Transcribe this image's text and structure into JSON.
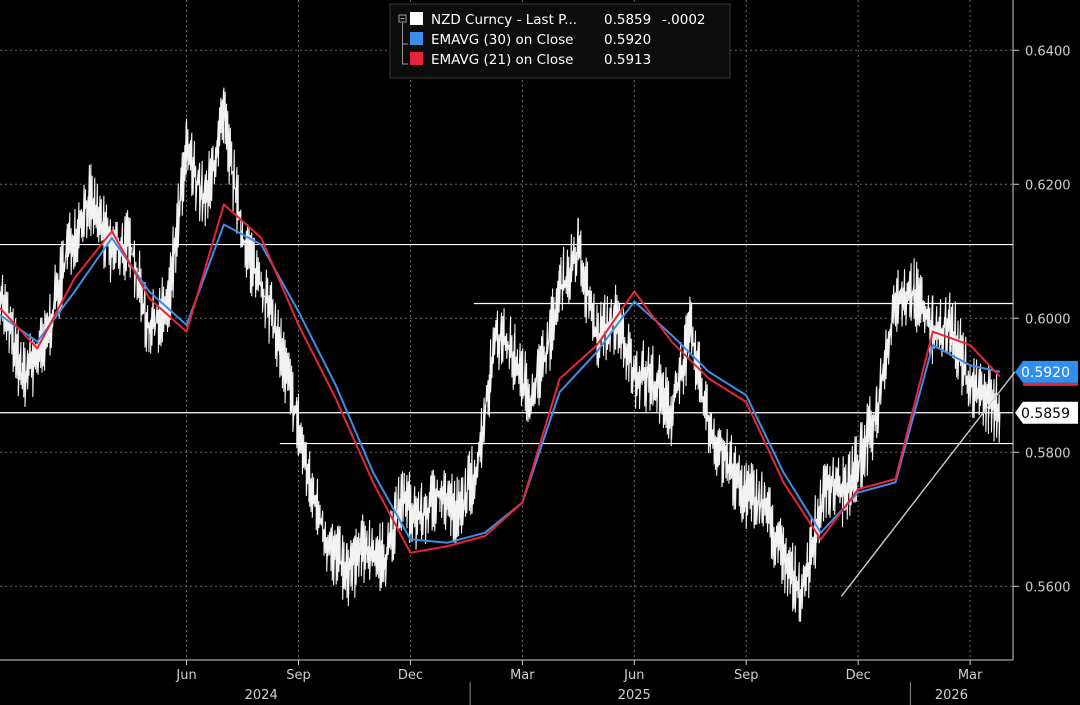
{
  "chart_data": {
    "type": "line",
    "background": "#000000",
    "y_axis": {
      "ticks": [
        0.64,
        0.62,
        0.6,
        0.58,
        0.56
      ],
      "tick_labels": [
        "0.6400",
        "0.6200",
        "0.6000",
        "0.5800",
        "0.5600"
      ],
      "range": [
        0.549,
        0.6475
      ]
    },
    "x_axis": {
      "month_labels": [
        "Jun",
        "Sep",
        "Dec",
        "Mar",
        "Jun",
        "Sep",
        "Dec",
        "Mar"
      ],
      "month_index": [
        5,
        8,
        11,
        14,
        17,
        20,
        23,
        26
      ],
      "year_labels": [
        "2024",
        "2025",
        "2026"
      ],
      "year_month_index": [
        7,
        17,
        25.5
      ],
      "range_months": [
        0,
        27.15
      ]
    },
    "legend": {
      "position": "top-center",
      "entries": [
        {
          "label": "NZD Curncy - Last P...",
          "value": "0.5859",
          "change": "-.0002",
          "color": "#ffffff"
        },
        {
          "label": "EMAVG (30)  on Close",
          "value": "0.5920",
          "color": "#3d8ee8"
        },
        {
          "label": "EMAVG (21)  on Close",
          "value": "0.5913",
          "color": "#e8243a"
        }
      ]
    },
    "price_tags": [
      {
        "text": "0.5920",
        "value": 0.592,
        "bg": "#2f8fef",
        "fg": "#ffffff",
        "underline": "#e8243a"
      },
      {
        "text": "0.5859",
        "value": 0.5859,
        "bg": "#ffffff",
        "fg": "#000000"
      }
    ],
    "series": [
      {
        "name": "NZD Curncy",
        "kind": "price",
        "color": "#ffffff",
        "x": [
          0.0,
          0.6,
          1.2,
          1.8,
          2.4,
          3.0,
          3.5,
          4.0,
          4.5,
          5.0,
          5.5,
          6.0,
          6.5,
          7.0,
          7.5,
          8.0,
          8.3,
          8.8,
          9.3,
          9.8,
          10.3,
          10.8,
          11.3,
          11.8,
          12.3,
          12.8,
          13.3,
          13.8,
          14.2,
          14.6,
          15.0,
          15.5,
          16.0,
          16.5,
          17.0,
          17.5,
          18.0,
          18.5,
          19.0,
          19.5,
          20.0,
          20.5,
          21.0,
          21.5,
          22.0,
          22.3,
          22.6,
          23.0,
          23.5,
          24.0,
          24.5,
          25.0,
          25.5,
          26.0,
          26.5,
          26.8
        ],
        "y": [
          0.604,
          0.591,
          0.596,
          0.61,
          0.618,
          0.61,
          0.611,
          0.598,
          0.602,
          0.625,
          0.617,
          0.63,
          0.612,
          0.605,
          0.596,
          0.584,
          0.575,
          0.566,
          0.562,
          0.566,
          0.564,
          0.573,
          0.57,
          0.574,
          0.571,
          0.578,
          0.598,
          0.594,
          0.588,
          0.594,
          0.604,
          0.61,
          0.597,
          0.6,
          0.592,
          0.591,
          0.586,
          0.598,
          0.584,
          0.578,
          0.574,
          0.572,
          0.564,
          0.559,
          0.572,
          0.576,
          0.574,
          0.578,
          0.586,
          0.603,
          0.604,
          0.598,
          0.599,
          0.59,
          0.588,
          0.5859
        ]
      },
      {
        "name": "EMAVG (30)",
        "kind": "ema",
        "color": "#3d8ee8",
        "x": [
          0.0,
          1.0,
          2.0,
          3.0,
          4.0,
          5.0,
          6.0,
          7.0,
          8.0,
          9.0,
          10.0,
          11.0,
          12.0,
          13.0,
          14.0,
          15.0,
          16.0,
          17.0,
          18.0,
          19.0,
          20.0,
          21.0,
          22.0,
          23.0,
          24.0,
          25.0,
          26.0,
          26.8
        ],
        "y": [
          0.6005,
          0.5965,
          0.604,
          0.612,
          0.604,
          0.599,
          0.614,
          0.611,
          0.601,
          0.59,
          0.577,
          0.567,
          0.5665,
          0.568,
          0.5725,
          0.589,
          0.595,
          0.6025,
          0.5975,
          0.592,
          0.5885,
          0.577,
          0.568,
          0.574,
          0.5755,
          0.596,
          0.593,
          0.592
        ]
      },
      {
        "name": "EMAVG (21)",
        "kind": "ema",
        "color": "#e8243a",
        "x": [
          0.0,
          1.0,
          2.0,
          3.0,
          4.0,
          5.0,
          6.0,
          7.0,
          8.0,
          9.0,
          10.0,
          11.0,
          12.0,
          13.0,
          14.0,
          15.0,
          16.0,
          17.0,
          18.0,
          19.0,
          20.0,
          21.0,
          22.0,
          23.0,
          24.0,
          25.0,
          26.0,
          26.8
        ],
        "y": [
          0.6015,
          0.5955,
          0.606,
          0.613,
          0.603,
          0.598,
          0.617,
          0.612,
          0.599,
          0.588,
          0.5755,
          0.565,
          0.566,
          0.5675,
          0.5725,
          0.591,
          0.596,
          0.604,
          0.5965,
          0.591,
          0.5875,
          0.5755,
          0.567,
          0.5745,
          0.576,
          0.598,
          0.596,
          0.5913
        ]
      }
    ],
    "annotations": [
      {
        "kind": "hline",
        "value": 0.611,
        "x_from": 0.0,
        "x_to": 27.15,
        "color": "#ffffff"
      },
      {
        "kind": "hline",
        "value": 0.6022,
        "x_from": 12.7,
        "x_to": 27.15,
        "color": "#ffffff"
      },
      {
        "kind": "hline",
        "value": 0.5859,
        "x_from": 0.0,
        "x_to": 27.15,
        "color": "#ffffff"
      },
      {
        "kind": "hline",
        "value": 0.5813,
        "x_from": 7.5,
        "x_to": 27.15,
        "color": "#ffffff"
      },
      {
        "kind": "trendline",
        "x1": 22.55,
        "y1": 0.5585,
        "x2": 27.2,
        "y2": 0.592,
        "color": "#cccccc"
      }
    ]
  }
}
